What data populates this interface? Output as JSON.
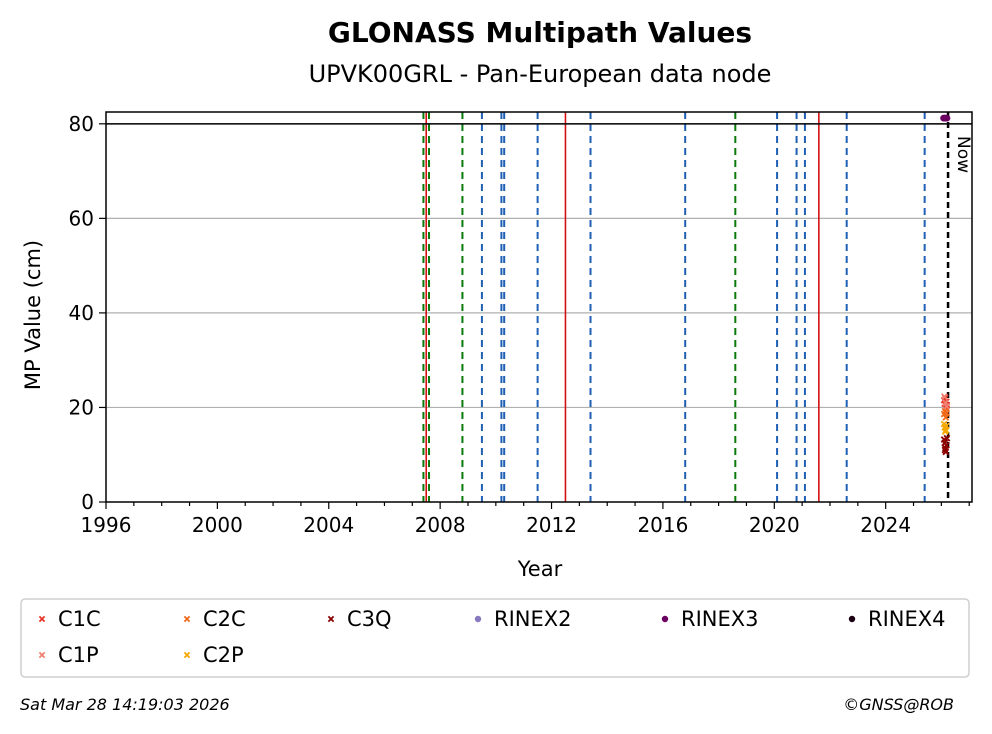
{
  "chart_data": {
    "type": "scatter",
    "title": "GLONASS Multipath Values",
    "subtitle": "UPVK00GRL - Pan-European data node",
    "xlabel": "Year",
    "ylabel": "MP Value (cm)",
    "xlim": [
      1996,
      2027.1
    ],
    "ylim": [
      0,
      82.5
    ],
    "xticks": [
      "1996",
      "2000",
      "2004",
      "2008",
      "2012",
      "2016",
      "2020",
      "2024"
    ],
    "yticks": [
      "0",
      "20",
      "40",
      "60",
      "80"
    ],
    "grid": "horizontal",
    "threshold_line": 80,
    "now_label": "Now",
    "now_x": 2026.24,
    "event_lines": {
      "blue": [
        2009.5,
        2010.2,
        2010.3,
        2011.5,
        2013.4,
        2016.8,
        2020.1,
        2020.8,
        2021.1,
        2022.6,
        2025.4
      ],
      "green": [
        2007.4,
        2007.6,
        2008.8,
        2018.6
      ],
      "red": [
        2007.5,
        2012.5,
        2021.6
      ]
    },
    "colors": {
      "blue": "#1f5fb4",
      "green": "#0a7a0a",
      "red": "#d41010",
      "C1C": "#e8382b",
      "C1P": "#f08070",
      "C2C": "#f06a1a",
      "C2P": "#f5a800",
      "C3Q": "#8b0000",
      "RINEX2": "#8878c0",
      "RINEX3": "#6a0060",
      "RINEX4": "#1a0010"
    },
    "series": [
      {
        "name": "C1C",
        "marker": "x",
        "x": [
          2026.1,
          2026.12,
          2026.14,
          2026.16,
          2026.18,
          2026.2
        ],
        "y": [
          21.5,
          20.8,
          22.0,
          19.9,
          21.2,
          20.5
        ]
      },
      {
        "name": "C1P",
        "marker": "x",
        "x": [
          2026.11,
          2026.15,
          2026.19
        ],
        "y": [
          22.3,
          21.0,
          20.2
        ]
      },
      {
        "name": "C2C",
        "marker": "x",
        "x": [
          2026.1,
          2026.13,
          2026.16,
          2026.19
        ],
        "y": [
          18.6,
          19.2,
          17.9,
          18.8
        ]
      },
      {
        "name": "C2P",
        "marker": "x",
        "x": [
          2026.1,
          2026.12,
          2026.14,
          2026.16,
          2026.18
        ],
        "y": [
          16.5,
          15.8,
          14.9,
          15.2,
          16.1
        ]
      },
      {
        "name": "C3Q",
        "marker": "x",
        "x": [
          2026.1,
          2026.12,
          2026.14,
          2026.16,
          2026.18,
          2026.2,
          2026.13
        ],
        "y": [
          13.2,
          12.5,
          11.4,
          10.6,
          12.0,
          13.5,
          11.0
        ]
      },
      {
        "name": "RINEX2",
        "marker": "dot",
        "x": [],
        "y": []
      },
      {
        "name": "RINEX3",
        "marker": "dot",
        "x": [
          2026.08,
          2026.11,
          2026.14,
          2026.17,
          2026.2
        ],
        "y": [
          81.2,
          81.2,
          81.2,
          81.2,
          81.2
        ]
      },
      {
        "name": "RINEX4",
        "marker": "dot",
        "x": [],
        "y": []
      }
    ],
    "legend": {
      "placement": "bottom",
      "entries": [
        "C1C",
        "C2C",
        "C3Q",
        "RINEX2",
        "RINEX3",
        "RINEX4",
        "C1P",
        "C2P"
      ]
    }
  },
  "footer": {
    "timestamp": "Sat Mar 28 14:19:03 2026",
    "credit": "©GNSS@ROB"
  }
}
